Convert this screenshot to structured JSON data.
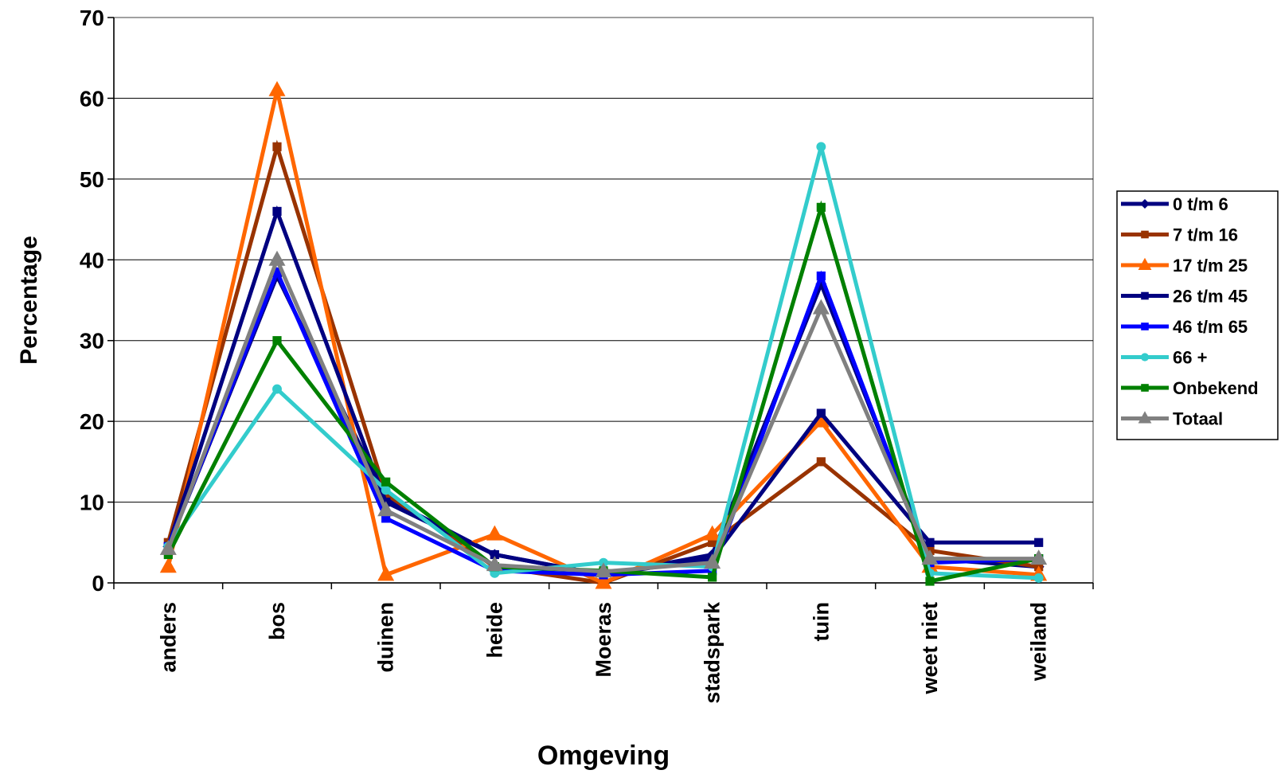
{
  "chart_data": {
    "type": "line",
    "title": "",
    "xlabel": "Omgeving",
    "ylabel": "Percentage",
    "ylim": [
      0,
      70
    ],
    "yticks": [
      0,
      10,
      20,
      30,
      40,
      50,
      60,
      70
    ],
    "grid": true,
    "legend": "right",
    "categories": [
      "anders",
      "bos",
      "duinen",
      "heide",
      "Moeras",
      "stadspark",
      "tuin",
      "weet niet",
      "weiland"
    ],
    "series": [
      {
        "name": "0 t/m 6",
        "color": "#000080",
        "marker": "diamond",
        "values": [
          4.5,
          38,
          10.5,
          3.5,
          1,
          3.5,
          37,
          3,
          2
        ]
      },
      {
        "name": "7 t/m 16",
        "color": "#993300",
        "marker": "square",
        "values": [
          5,
          54,
          11,
          2,
          0,
          5,
          15,
          4,
          2
        ]
      },
      {
        "name": "17 t/m 25",
        "color": "#FF6600",
        "marker": "triangle",
        "values": [
          2,
          61,
          1,
          6,
          0,
          6,
          20,
          2,
          1
        ]
      },
      {
        "name": "26 t/m 45",
        "color": "#000080",
        "marker": "square",
        "values": [
          4.5,
          46,
          10,
          3.5,
          1,
          3,
          21,
          5,
          5
        ]
      },
      {
        "name": "46 t/m 65",
        "color": "#0000FF",
        "marker": "square",
        "values": [
          4.5,
          38.5,
          8,
          1.5,
          1,
          1.5,
          38,
          2.5,
          3
        ]
      },
      {
        "name": "66 +",
        "color": "#33CCCC",
        "marker": "circle",
        "values": [
          4.5,
          24,
          11.5,
          1.2,
          2.5,
          2,
          54,
          1.2,
          0.6
        ]
      },
      {
        "name": "Onbekend",
        "color": "#008000",
        "marker": "square",
        "values": [
          3.5,
          30,
          12.5,
          2,
          1.5,
          0.7,
          46.5,
          0.2,
          3
        ]
      },
      {
        "name": "Totaal",
        "color": "#808080",
        "marker": "triangle",
        "values": [
          4.2,
          40,
          9,
          2.2,
          1.4,
          2.5,
          34,
          3,
          3
        ]
      }
    ]
  }
}
